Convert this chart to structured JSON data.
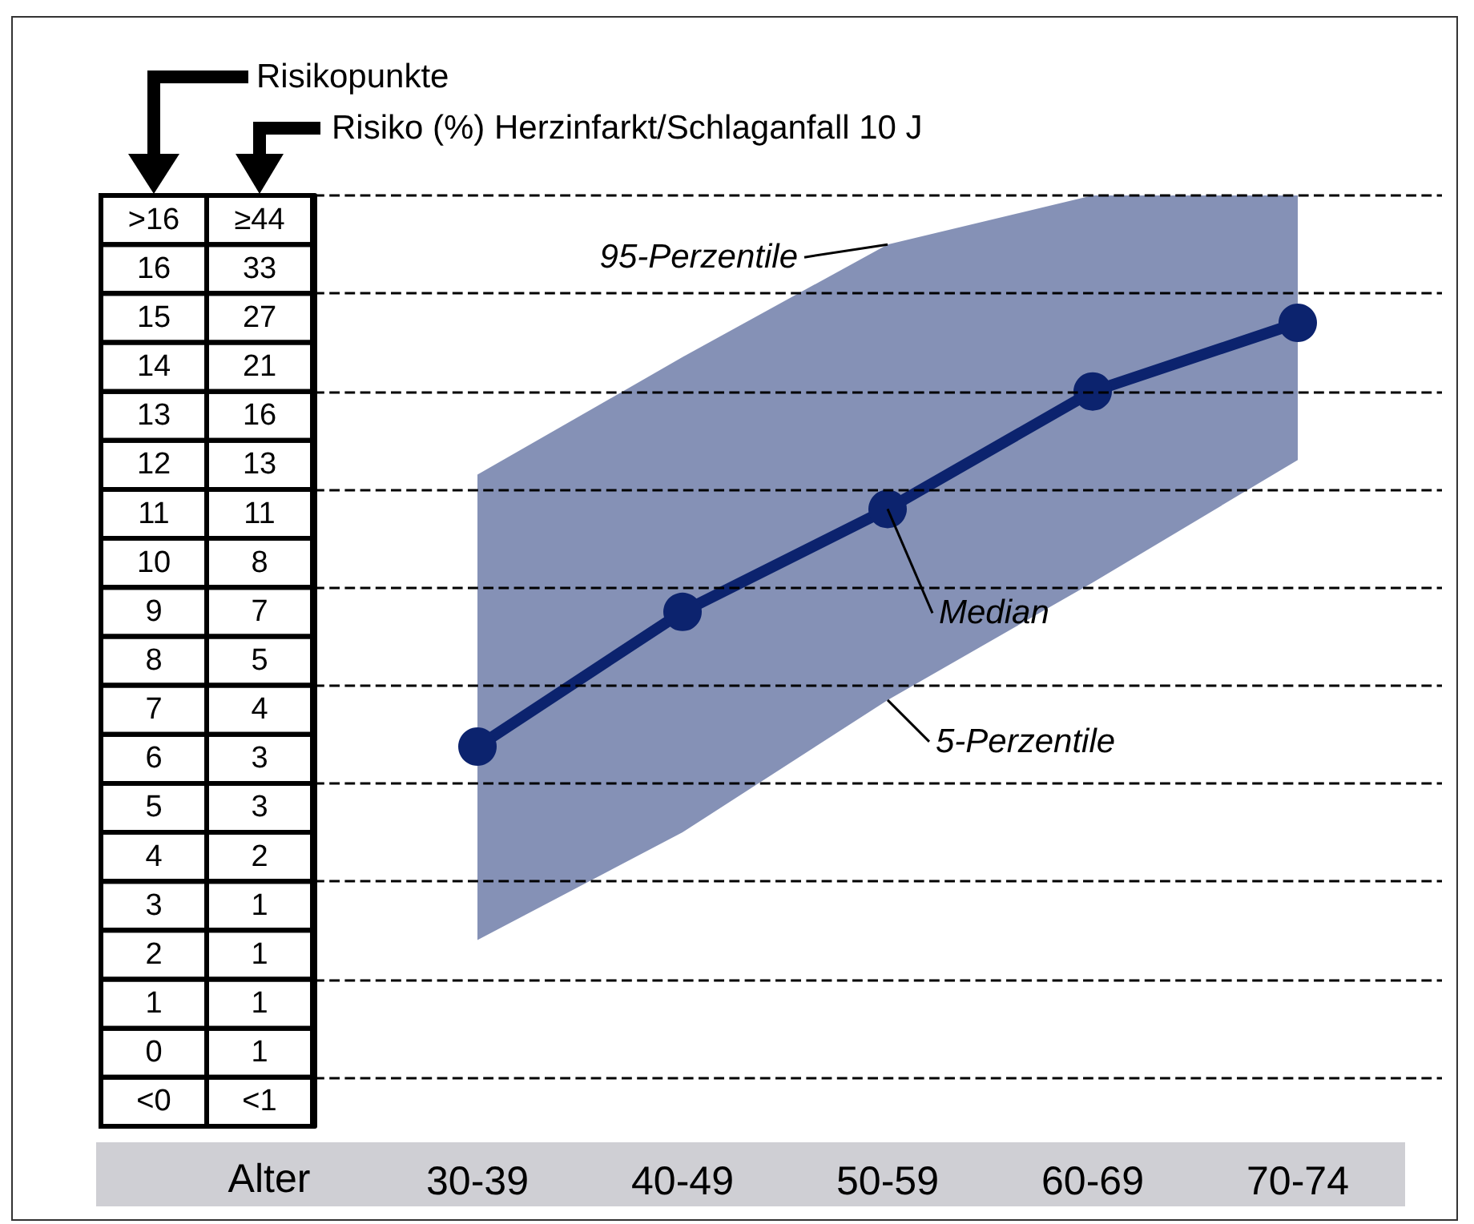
{
  "chart_data": {
    "type": "line",
    "ylabel": "Risikopunkte",
    "xlabel": "Alter",
    "categories": [
      "30-39",
      "40-49",
      "50-59",
      "60-69",
      "70-74"
    ],
    "ylim": [
      -1.5,
      17.5
    ],
    "yticks": [
      {
        "value": 17,
        "label": ">16"
      },
      16,
      15,
      14,
      13,
      12,
      11,
      10,
      9,
      8,
      7,
      6,
      5,
      4,
      3,
      2,
      1,
      0,
      {
        "value": -1,
        "label": "<0"
      }
    ],
    "grid": false,
    "marker": "circle",
    "line_style": "solid",
    "series": [
      {
        "color": "#0c236e",
        "values": [
          6.25,
          9.0,
          11.1,
          13.5,
          14.9
        ],
        "lower": [
          2.3,
          4.5,
          7.2,
          9.6,
          12.1
        ],
        "upper": [
          11.8,
          14.2,
          16.5,
          17.5,
          17.5
        ]
      }
    ],
    "ref_lines": [
      {
        "axis": "y",
        "value": 17.5,
        "color": "#000000",
        "line_style": "dashed"
      },
      {
        "axis": "y",
        "value": 15.5,
        "color": "#000000",
        "line_style": "dashed"
      },
      {
        "axis": "y",
        "value": 13.5,
        "color": "#000000",
        "line_style": "dashed"
      },
      {
        "axis": "y",
        "value": 11.5,
        "color": "#000000",
        "line_style": "dashed"
      },
      {
        "axis": "y",
        "value": 9.5,
        "color": "#000000",
        "line_style": "dashed"
      },
      {
        "axis": "y",
        "value": 7.5,
        "color": "#000000",
        "line_style": "dashed"
      },
      {
        "axis": "y",
        "value": 5.5,
        "color": "#000000",
        "line_style": "dashed"
      },
      {
        "axis": "y",
        "value": 3.5,
        "color": "#000000",
        "line_style": "dashed"
      },
      {
        "axis": "y",
        "value": 1.5,
        "color": "#000000",
        "line_style": "dashed"
      },
      {
        "axis": "y",
        "value": -0.5,
        "color": "#000000",
        "line_style": "dashed"
      }
    ],
    "annotations": [
      "Risiko (%) Herzinfarkt/Schlaganfall 10 J",
      "≥44",
      "33",
      "27",
      "21",
      "16",
      "13",
      "11",
      "8",
      "7",
      "5",
      "4",
      "3",
      "3",
      "2",
      "1",
      "1",
      "1",
      "1",
      "<1",
      {
        "text": "95-Perzentile",
        "x": "50-59",
        "y": 16.5
      },
      {
        "text": "Median",
        "x": "50-59",
        "y": 11.1
      },
      {
        "text": "5-Perzentile",
        "x": "50-59",
        "y": 7.2
      }
    ]
  }
}
